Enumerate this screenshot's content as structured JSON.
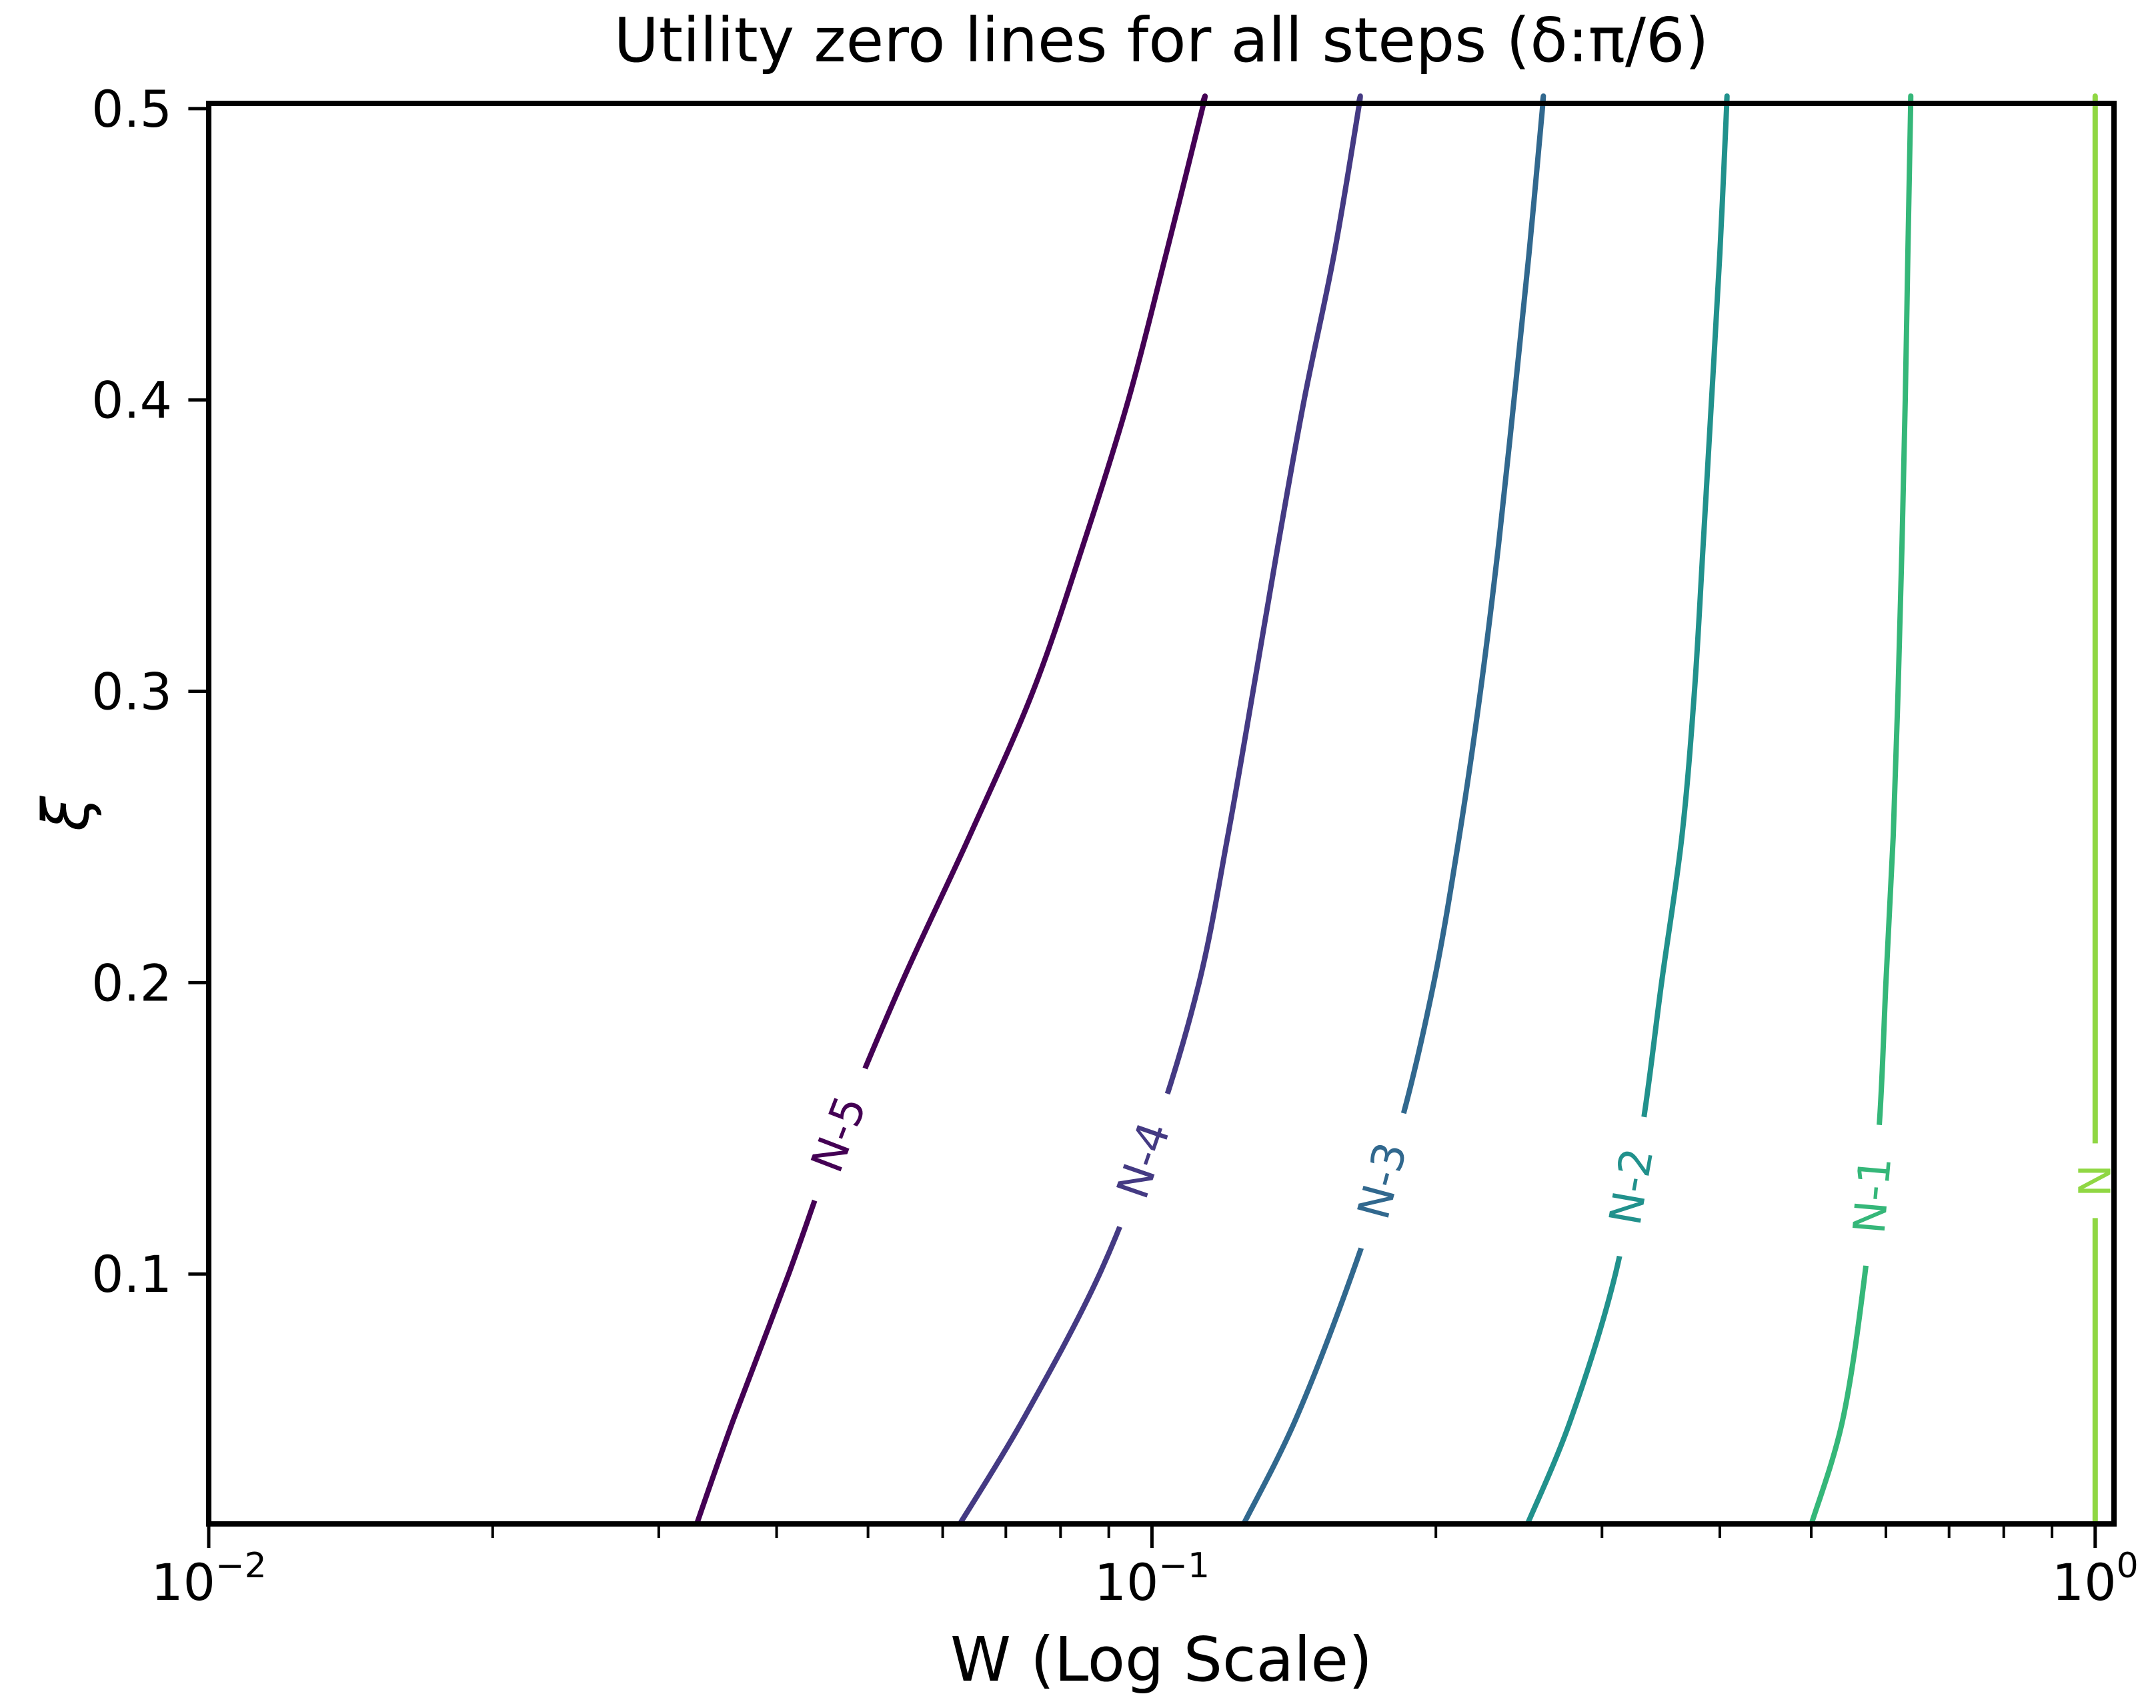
{
  "figure": {
    "background": "#ffffff",
    "text_color": "#000000",
    "spine_color": "#000000"
  },
  "chart_data": {
    "type": "line",
    "subtype": "contour-zero-level-curves",
    "title": "Utility zero lines for all steps (δ:π/6)",
    "xlabel": "W (Log Scale)",
    "ylabel": "ξ",
    "x_scale": "log",
    "y_scale": "linear",
    "xlim": [
      0.01,
      1.047
    ],
    "ylim": [
      0.0142,
      0.5018
    ],
    "grid": false,
    "legend_position": "none-inline-contour-labels",
    "x_ticks": [
      {
        "value": 0.01,
        "mantissa": "10",
        "exponent": "−2",
        "unicode": "10⁻²"
      },
      {
        "value": 0.1,
        "mantissa": "10",
        "exponent": "−1",
        "unicode": "10⁻¹"
      },
      {
        "value": 1.0,
        "mantissa": "10",
        "exponent": "0",
        "unicode": "10⁰"
      }
    ],
    "x_minor_ticks": [
      0.02,
      0.03,
      0.04,
      0.05,
      0.06,
      0.07,
      0.08,
      0.09,
      0.2,
      0.3,
      0.4,
      0.5,
      0.6,
      0.7,
      0.8,
      0.9
    ],
    "y_ticks": [
      {
        "value": 0.5,
        "label": "0.5"
      },
      {
        "value": 0.4,
        "label": "0.4"
      },
      {
        "value": 0.3,
        "label": "0.3"
      },
      {
        "value": 0.2,
        "label": "0.2"
      },
      {
        "value": 0.1,
        "label": "0.1"
      }
    ],
    "xi": [
      0.014,
      0.05,
      0.1,
      0.15,
      0.2,
      0.25,
      0.3,
      0.35,
      0.4,
      0.45,
      0.5
    ],
    "series": [
      {
        "name": "N-5",
        "color": "#440154",
        "label_xi": 0.148,
        "label_angle": -69,
        "W": [
          0.0329,
          0.036,
          0.0412,
          0.0468,
          0.0543,
          0.064,
          0.0748,
          0.0845,
          0.0944,
          0.1035,
          0.1131
        ]
      },
      {
        "name": "N-4",
        "color": "#443a83",
        "label_xi": 0.139,
        "label_angle": -71,
        "W": [
          0.0625,
          0.073,
          0.088,
          0.101,
          0.1122,
          0.1203,
          0.128,
          0.136,
          0.145,
          0.156,
          0.1656
        ]
      },
      {
        "name": "N-3",
        "color": "#31688e",
        "label_xi": 0.132,
        "label_angle": -75,
        "W": [
          0.125,
          0.142,
          0.163,
          0.183,
          0.199,
          0.2117,
          0.223,
          0.233,
          0.242,
          0.251,
          0.2594
        ]
      },
      {
        "name": "N-2",
        "color": "#21918c",
        "label_xi": 0.13,
        "label_angle": -80,
        "W": [
          0.25,
          0.278,
          0.31,
          0.331,
          0.347,
          0.3646,
          0.376,
          0.384,
          0.392,
          0.4,
          0.4066
        ]
      },
      {
        "name": "N-1",
        "color": "#35b779",
        "label_xi": 0.127,
        "label_angle": -85,
        "W": [
          0.5,
          0.54,
          0.57,
          0.59,
          0.6,
          0.6107,
          0.618,
          0.624,
          0.629,
          0.633,
          0.6372
        ]
      },
      {
        "name": "N",
        "color": "#90d743",
        "label_xi": 0.132,
        "label_angle": -90,
        "W": [
          1.0,
          1.0,
          1.0,
          1.0,
          1.0,
          1.0,
          1.0,
          1.0,
          1.0,
          1.0,
          1.0
        ]
      }
    ]
  }
}
